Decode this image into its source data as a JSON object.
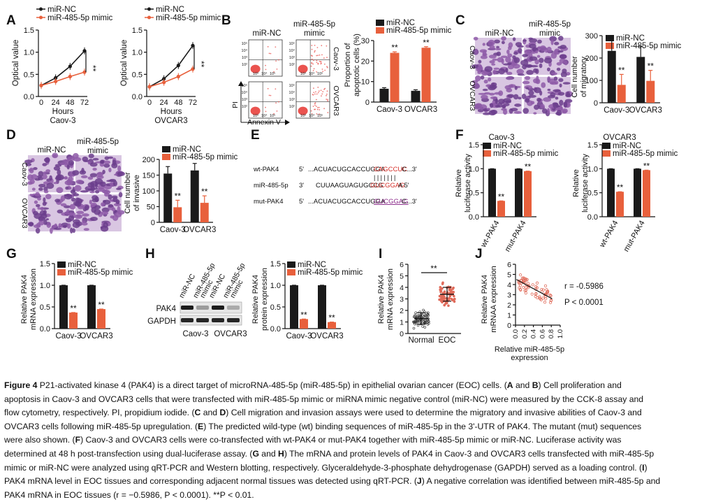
{
  "figure": {
    "panel_letters": [
      "A",
      "B",
      "C",
      "D",
      "E",
      "F",
      "G",
      "H",
      "I",
      "J"
    ],
    "legend_nc": "miR-NC",
    "legend_mimic": "miR-485-5p mimic",
    "sig_mark": "**",
    "colors": {
      "nc": "#1a1a1a",
      "mimic": "#e8603c",
      "scatter_red": "#e06b5a"
    },
    "panel_A": {
      "ylabel": "Optical value",
      "xlabel": "Hours",
      "xticks": [
        "0",
        "24",
        "48",
        "72"
      ],
      "yticks": [
        "0.0",
        "0.5",
        "1.0",
        "1.5"
      ],
      "cell_labels": [
        "Caov-3",
        "OVCAR3"
      ]
    },
    "panel_B": {
      "col_labels": [
        "miR-NC",
        "miR-485-5p",
        "mimic"
      ],
      "row_labels": [
        "Caov-3",
        "OVCAR3"
      ],
      "axis_pi": "PI",
      "axis_annexin": "Annexin V",
      "ylabel_1": "Proportion of",
      "ylabel_2": "apoptotic cells (%)",
      "yticks": [
        "0",
        "10",
        "20",
        "30"
      ],
      "categories": [
        "Caov-3",
        "OVCAR3"
      ]
    },
    "panel_C": {
      "col_labels": [
        "miR-NC",
        "miR-485-5p",
        "mimic"
      ],
      "row_labels": [
        "Caov-3",
        "OVCAR3"
      ],
      "ylabel_1": "Cell number",
      "ylabel_2": "of migratory",
      "yticks": [
        "0",
        "100",
        "200",
        "300"
      ],
      "categories": [
        "Caov-3",
        "OVCAR3"
      ]
    },
    "panel_D": {
      "col_labels": [
        "miR-NC",
        "miR-485-5p",
        "mimic"
      ],
      "row_labels": [
        "Caov-3",
        "OVCAR3"
      ],
      "ylabel_1": "Cell number",
      "ylabel_2": "of invasive",
      "yticks": [
        "0",
        "50",
        "100",
        "150",
        "200"
      ],
      "categories": [
        "Caov-3",
        "OVCAR3"
      ]
    },
    "panel_E": {
      "rows": [
        {
          "name": "wt-PAK4",
          "p5": "5'",
          "seq": "...ACUACUGCACCUGGA",
          "seed": "CAGCCUC",
          "tail": "C...3'"
        },
        {
          "name": "miR-485-5p",
          "p5": "3'",
          "seq": "CUUAAGUAGUGCCG",
          "seed": "GUCGGAG",
          "tail": "A     5'"
        },
        {
          "name": "mut-PAK4",
          "p5": "5'",
          "seq": "...ACUACUGCACCUGGA",
          "seed": "GUCGGAG",
          "tail": "C...3'"
        }
      ],
      "pairing": "| | | | | | |"
    },
    "panel_F": {
      "ylabel_1": "Relative",
      "ylabel_2": "luciferase activity",
      "yticks": [
        "0.0",
        "0.5",
        "1.0",
        "1.5"
      ],
      "titles": [
        "Caov-3",
        "OVCAR3"
      ],
      "categories": [
        "wt-PAK4",
        "mut-PAK4"
      ]
    },
    "panel_G": {
      "ylabel_1": "Relative PAK4",
      "ylabel_2": "mRNA expression",
      "yticks": [
        "0.0",
        "0.5",
        "1.0",
        "1.5"
      ],
      "categories": [
        "Caov-3",
        "OVCAR3"
      ]
    },
    "panel_H": {
      "lane_labels": [
        "miR-NC",
        "miR-485-5p mimic",
        "miR-NC",
        "miR-485-5p mimic"
      ],
      "band_labels": [
        "PAK4",
        "GAPDH"
      ],
      "cell_labels": [
        "Caov-3",
        "OVCAR3"
      ],
      "ylabel_1": "Relative PAK4",
      "ylabel_2": "protein expression",
      "yticks": [
        "0.0",
        "0.5",
        "1.0",
        "1.5"
      ],
      "categories": [
        "Caov-3",
        "OVCAR3"
      ]
    },
    "panel_I": {
      "ylabel_1": "Relative PAK4",
      "ylabel_2": "mRNA expression",
      "yticks": [
        "0",
        "1",
        "2",
        "3",
        "4",
        "5",
        "6"
      ],
      "categories": [
        "Normal",
        "EOC"
      ]
    },
    "panel_J": {
      "ylabel_1": "Relative PAK4",
      "ylabel_2": "mRNAA expression",
      "xlabel_1": "Relative miR-485-5p",
      "xlabel_2": "expression",
      "yticks": [
        "0",
        "1",
        "2",
        "3",
        "4",
        "5",
        "6"
      ],
      "xticks": [
        "0.0",
        "0.2",
        "0.4",
        "0.6",
        "0.8",
        "1.0"
      ],
      "r_text": "r = -0.5986",
      "p_text": "P < 0.0001"
    }
  },
  "chart_data": [
    {
      "panel": "A-Caov-3",
      "type": "line",
      "x": [
        0,
        24,
        48,
        72
      ],
      "xlabel": "Hours",
      "ylabel": "Optical value",
      "ylim": [
        0,
        1.5
      ],
      "series": [
        {
          "name": "miR-NC",
          "values": [
            0.25,
            0.42,
            0.68,
            1.03
          ]
        },
        {
          "name": "miR-485-5p mimic",
          "values": [
            0.25,
            0.34,
            0.45,
            0.55
          ]
        }
      ]
    },
    {
      "panel": "A-OVCAR3",
      "type": "line",
      "x": [
        0,
        24,
        48,
        72
      ],
      "xlabel": "Hours",
      "ylabel": "Optical value",
      "ylim": [
        0,
        1.5
      ],
      "series": [
        {
          "name": "miR-NC",
          "values": [
            0.22,
            0.4,
            0.7,
            1.15
          ]
        },
        {
          "name": "miR-485-5p mimic",
          "values": [
            0.22,
            0.32,
            0.45,
            0.62
          ]
        }
      ]
    },
    {
      "panel": "B",
      "type": "bar",
      "categories": [
        "Caov-3",
        "OVCAR3"
      ],
      "ylim": [
        0,
        30
      ],
      "series": [
        {
          "name": "miR-NC",
          "values": [
            6.5,
            5.5
          ]
        },
        {
          "name": "miR-485-5p mimic",
          "values": [
            24,
            26.5
          ]
        }
      ]
    },
    {
      "panel": "C",
      "type": "bar",
      "categories": [
        "Caov-3",
        "OVCAR3"
      ],
      "ylim": [
        0,
        300
      ],
      "series": [
        {
          "name": "miR-NC",
          "values": [
            232,
            205
          ]
        },
        {
          "name": "miR-485-5p mimic",
          "values": [
            80,
            98
          ]
        }
      ]
    },
    {
      "panel": "D",
      "type": "bar",
      "categories": [
        "Caov-3",
        "OVCAR3"
      ],
      "ylim": [
        0,
        200
      ],
      "series": [
        {
          "name": "miR-NC",
          "values": [
            155,
            165
          ]
        },
        {
          "name": "miR-485-5p mimic",
          "values": [
            48,
            62
          ]
        }
      ]
    },
    {
      "panel": "F-Caov-3",
      "type": "bar",
      "categories": [
        "wt-PAK4",
        "mut-PAK4"
      ],
      "ylim": [
        0,
        1.5
      ],
      "series": [
        {
          "name": "miR-NC",
          "values": [
            1.0,
            1.0
          ]
        },
        {
          "name": "miR-485-5p mimic",
          "values": [
            0.33,
            0.95
          ]
        }
      ]
    },
    {
      "panel": "F-OVCAR3",
      "type": "bar",
      "categories": [
        "wt-PAK4",
        "mut-PAK4"
      ],
      "ylim": [
        0,
        1.5
      ],
      "series": [
        {
          "name": "miR-NC",
          "values": [
            1.0,
            1.0
          ]
        },
        {
          "name": "miR-485-5p mimic",
          "values": [
            0.52,
            0.97
          ]
        }
      ]
    },
    {
      "panel": "G",
      "type": "bar",
      "categories": [
        "Caov-3",
        "OVCAR3"
      ],
      "ylim": [
        0,
        1.5
      ],
      "series": [
        {
          "name": "miR-NC",
          "values": [
            1.0,
            1.0
          ]
        },
        {
          "name": "miR-485-5p mimic",
          "values": [
            0.37,
            0.45
          ]
        }
      ]
    },
    {
      "panel": "H",
      "type": "bar",
      "categories": [
        "Caov-3",
        "OVCAR3"
      ],
      "ylim": [
        0,
        1.5
      ],
      "series": [
        {
          "name": "miR-NC",
          "values": [
            1.0,
            1.0
          ]
        },
        {
          "name": "miR-485-5p mimic",
          "values": [
            0.22,
            0.15
          ]
        }
      ]
    },
    {
      "panel": "I",
      "type": "scatter",
      "categories": [
        "Normal",
        "EOC"
      ],
      "ylim": [
        0,
        6
      ],
      "series": [
        {
          "name": "Normal",
          "mean": 1.3,
          "sd": 0.5
        },
        {
          "name": "EOC",
          "mean": 3.4,
          "sd": 0.6
        }
      ]
    },
    {
      "panel": "J",
      "type": "scatter",
      "xlim": [
        0,
        1.0
      ],
      "ylim": [
        0,
        6
      ],
      "r": -0.5986,
      "p": "< 0.0001",
      "fit_line": {
        "x": [
          0.02,
          0.82
        ],
        "y": [
          4.5,
          2.6
        ]
      }
    }
  ],
  "caption": {
    "label": "Figure 4",
    "lines": [
      [
        {
          "t": "P21-activated kinase 4 (PAK4) is a direct target of microRNA-485-5p (miR-485-5p) in epithelial ovarian cancer (EOC) cells. (",
          "b": false
        },
        {
          "t": "A",
          "b": true
        },
        {
          "t": " and ",
          "b": false
        },
        {
          "t": "B",
          "b": true
        },
        {
          "t": ") Cell proliferation and",
          "b": false
        }
      ],
      [
        {
          "t": "apoptosis in Caov-3 and OVCAR3 cells that were transfected with miR-485-5p mimic or miRNA mimic negative control (miR-NC) were measured by the CCK-8 assay and",
          "b": false
        }
      ],
      [
        {
          "t": "flow cytometry, respectively. PI, propidium iodide. (",
          "b": false
        },
        {
          "t": "C",
          "b": true
        },
        {
          "t": " and ",
          "b": false
        },
        {
          "t": "D",
          "b": true
        },
        {
          "t": ") Cell migration and invasion assays were used to determine the migratory and invasive abilities of Caov-3 and",
          "b": false
        }
      ],
      [
        {
          "t": "OVCAR3 cells following miR-485-5p upregulation. (",
          "b": false
        },
        {
          "t": "E",
          "b": true
        },
        {
          "t": ") The predicted wild-type (wt) binding sequences of miR-485-5p in the 3'-UTR of PAK4. The mutant (mut) sequences",
          "b": false
        }
      ],
      [
        {
          "t": "were also shown. (",
          "b": false
        },
        {
          "t": "F",
          "b": true
        },
        {
          "t": ") Caov-3 and OVCAR3 cells were co-transfected with wt-PAK4 or mut-PAK4 together with miR-485-5p mimic or miR-NC. Luciferase activity was",
          "b": false
        }
      ],
      [
        {
          "t": "determined at 48 h post-transfection using dual-luciferase assay. (",
          "b": false
        },
        {
          "t": "G",
          "b": true
        },
        {
          "t": " and ",
          "b": false
        },
        {
          "t": "H",
          "b": true
        },
        {
          "t": ") The mRNA and protein levels of PAK4 in Caov-3 and OVCAR3 cells transfected with miR-485-5p",
          "b": false
        }
      ],
      [
        {
          "t": "mimic or miR-NC were analyzed using qRT-PCR and Western blotting, respectively. Glyceraldehyde-3-phosphate dehydrogenase (GAPDH) served as a loading control. (",
          "b": false
        },
        {
          "t": "I",
          "b": true
        },
        {
          "t": ")",
          "b": false
        }
      ],
      [
        {
          "t": "PAK4 mRNA level in EOC tissues and corresponding adjacent normal tissues was detected using qRT-PCR. (",
          "b": false
        },
        {
          "t": "J",
          "b": true
        },
        {
          "t": ") A negative correlation was identified between miR-485-5p and",
          "b": false
        }
      ],
      [
        {
          "t": "PAK4 mRNA in EOC tissues (r = −0.5986, P < 0.0001). **P < 0.01.",
          "b": false
        }
      ]
    ]
  }
}
